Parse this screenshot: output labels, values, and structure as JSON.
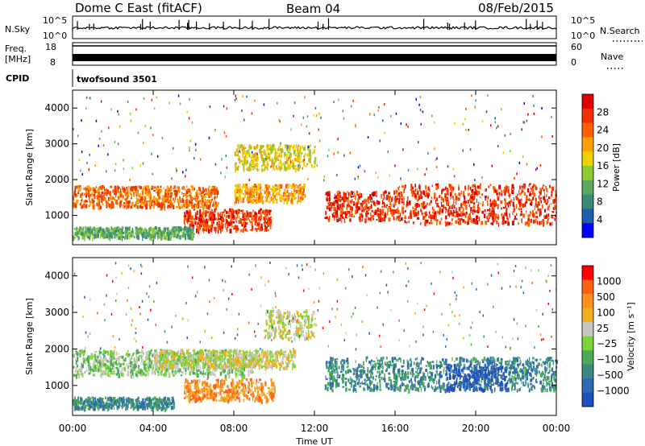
{
  "header": {
    "radar": "Dome C East (fitACF)",
    "beam": "Beam 04",
    "date": "08/Feb/2015"
  },
  "top_panels": {
    "nsky": {
      "label": "N.Sky",
      "ticks": [
        "10^5",
        "10^0"
      ]
    },
    "nsearch": {
      "label": "N.Search",
      "ticks": [
        "10^5",
        "10^0"
      ]
    },
    "freq": {
      "label_line1": "Freq.",
      "label_line2": "[MHz]",
      "ticks": [
        "18",
        "8"
      ]
    },
    "nave": {
      "label": "Nave",
      "ticks": [
        "60",
        "0"
      ]
    },
    "cpid": {
      "label": "CPID",
      "value": "twofsound 3501"
    }
  },
  "colors": {
    "power_scale": [
      "#0000ff",
      "#1f5fb0",
      "#3a8a7a",
      "#5fa860",
      "#8ccc2e",
      "#f0d000",
      "#ffa000",
      "#ff6000",
      "#f03000",
      "#e00000"
    ],
    "velocity_scale": [
      "#2050c0",
      "#306ab0",
      "#3a8a80",
      "#4aaa58",
      "#7cd43a",
      "#c8c8c0",
      "#f0b020",
      "#ff9020",
      "#ff6010",
      "#ff0000"
    ]
  },
  "chart_data": [
    {
      "type": "heatmap",
      "name": "power",
      "title": "",
      "xlabel": "Time UT",
      "ylabel": "Slant Range [km]",
      "xlim": [
        "00:00",
        "24:00"
      ],
      "ylim": [
        180,
        4500
      ],
      "x_ticks": [
        "00:00",
        "04:00",
        "08:00",
        "12:00",
        "16:00",
        "20:00",
        "00:00"
      ],
      "y_ticks": [
        1000,
        2000,
        3000,
        4000
      ],
      "colorbar": {
        "label": "Power [dB]",
        "range": [
          0,
          32
        ],
        "ticks": [
          4,
          8,
          12,
          16,
          20,
          24,
          28
        ]
      },
      "echo_regions": [
        {
          "t_start": 0.0,
          "t_end": 7.2,
          "r_start": 1250,
          "r_end": 1850,
          "level": 7
        },
        {
          "t_start": 5.5,
          "t_end": 9.8,
          "r_start": 600,
          "r_end": 1200,
          "level": 8
        },
        {
          "t_start": 8.0,
          "t_end": 11.5,
          "r_start": 1400,
          "r_end": 1900,
          "level": 6
        },
        {
          "t_start": 12.5,
          "t_end": 16.0,
          "r_start": 900,
          "r_end": 1700,
          "level": 8
        },
        {
          "t_start": 16.0,
          "t_end": 24.0,
          "r_start": 800,
          "r_end": 1900,
          "level": 8
        },
        {
          "t_start": 0.0,
          "t_end": 6.0,
          "r_start": 400,
          "r_end": 700,
          "level": 3
        },
        {
          "t_start": 8.0,
          "t_end": 12.0,
          "r_start": 2300,
          "r_end": 3000,
          "level": 5
        }
      ]
    },
    {
      "type": "heatmap",
      "name": "velocity",
      "title": "",
      "xlabel": "Time UT",
      "ylabel": "Slant Range [km]",
      "xlim": [
        "00:00",
        "24:00"
      ],
      "ylim": [
        180,
        4500
      ],
      "x_ticks": [
        "00:00",
        "04:00",
        "08:00",
        "12:00",
        "16:00",
        "20:00",
        "00:00"
      ],
      "y_ticks": [
        1000,
        2000,
        3000,
        4000
      ],
      "colorbar": {
        "label": "Velocity [m s⁻¹]",
        "ticks": [
          "1000",
          "500",
          "100",
          "25",
          "−25",
          "−100",
          "−500",
          "−1000"
        ]
      },
      "echo_regions": [
        {
          "t_start": 0.0,
          "t_end": 9.0,
          "r_start": 1300,
          "r_end": 2000,
          "level": 4
        },
        {
          "t_start": 4.0,
          "t_end": 11.0,
          "r_start": 1500,
          "r_end": 2000,
          "level": 5
        },
        {
          "t_start": 5.5,
          "t_end": 10.0,
          "r_start": 600,
          "r_end": 1200,
          "level": 7
        },
        {
          "t_start": 9.5,
          "t_end": 12.0,
          "r_start": 2300,
          "r_end": 3100,
          "level": 5
        },
        {
          "t_start": 12.5,
          "t_end": 24.0,
          "r_start": 900,
          "r_end": 1800,
          "level": 2
        },
        {
          "t_start": 18.5,
          "t_end": 21.5,
          "r_start": 900,
          "r_end": 1600,
          "level": 0
        },
        {
          "t_start": 0.0,
          "t_end": 5.0,
          "r_start": 400,
          "r_end": 700,
          "level": 2
        }
      ]
    }
  ]
}
